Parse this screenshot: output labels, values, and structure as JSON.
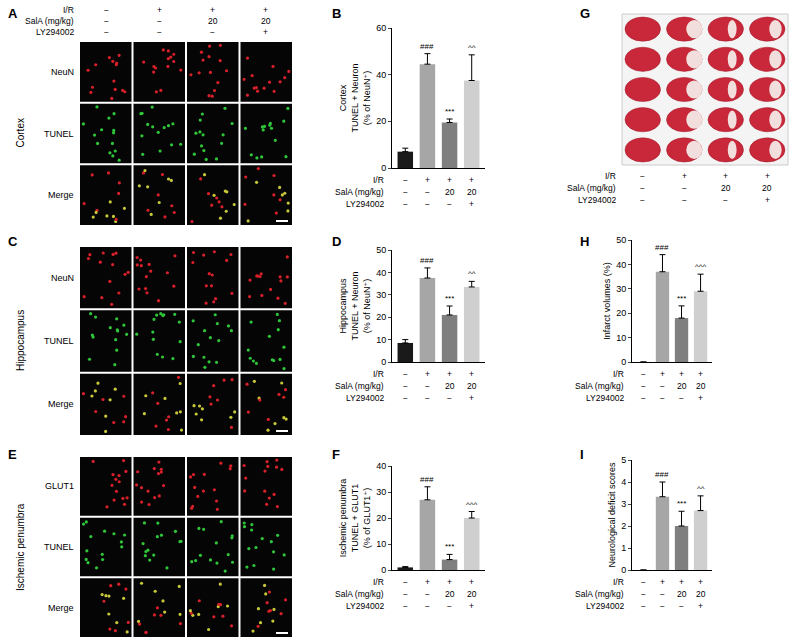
{
  "chart_data": [
    {
      "panel": "B",
      "type": "bar",
      "ylabel": [
        "Cortex",
        "TUNEL + Neuron",
        "(% of NeuN⁺)"
      ],
      "categories": [
        null,
        null,
        null,
        null
      ],
      "values": [
        7,
        44.5,
        19.5,
        37.5
      ],
      "errors": [
        1.5,
        4.5,
        1.5,
        11
      ],
      "significance": [
        null,
        "###",
        "***",
        "^^"
      ],
      "colors": [
        "#1a1a1a",
        "#a6a6a6",
        "#7f7f7f",
        "#cfcfcf"
      ],
      "ylim": [
        0,
        60
      ],
      "yticks": [
        0,
        20,
        40,
        60
      ],
      "grid": false
    },
    {
      "panel": "D",
      "type": "bar",
      "ylabel": [
        "Hippocampus",
        "TUNEL + Neuron",
        "(% of NeuN⁺)"
      ],
      "categories": [
        null,
        null,
        null,
        null
      ],
      "values": [
        8.5,
        37.5,
        21,
        33.5
      ],
      "errors": [
        1.5,
        4.5,
        4,
        2.5
      ],
      "significance": [
        null,
        "###",
        "***",
        "^^"
      ],
      "colors": [
        "#1a1a1a",
        "#a6a6a6",
        "#7f7f7f",
        "#cfcfcf"
      ],
      "ylim": [
        0,
        50
      ],
      "yticks": [
        0,
        10,
        20,
        30,
        40,
        50
      ],
      "grid": false
    },
    {
      "panel": "F",
      "type": "bar",
      "ylabel": [
        "Ischemic penumbra",
        "TUNEL + GLUT1",
        "(% of GLUT1⁺)"
      ],
      "categories": [
        null,
        null,
        null,
        null
      ],
      "values": [
        1,
        27,
        4,
        20
      ],
      "errors": [
        0.3,
        5,
        2,
        2.5
      ],
      "significance": [
        null,
        "###",
        "***",
        "^^^"
      ],
      "colors": [
        "#1a1a1a",
        "#a6a6a6",
        "#7f7f7f",
        "#cfcfcf"
      ],
      "ylim": [
        0,
        40
      ],
      "yticks": [
        0,
        10,
        20,
        30,
        40
      ],
      "grid": false
    },
    {
      "panel": "H",
      "type": "bar",
      "ylabel": [
        "Infarct volumes (%)"
      ],
      "categories": [
        null,
        null,
        null,
        null
      ],
      "values": [
        0,
        37,
        18,
        29
      ],
      "errors": [
        0,
        7,
        5,
        7
      ],
      "significance": [
        null,
        "###",
        "***",
        "^^^"
      ],
      "colors": [
        "#1a1a1a",
        "#a6a6a6",
        "#7f7f7f",
        "#cfcfcf"
      ],
      "ylim": [
        0,
        50
      ],
      "yticks": [
        0,
        10,
        20,
        30,
        40,
        50
      ],
      "grid": false
    },
    {
      "panel": "I",
      "type": "bar",
      "ylabel": [
        "Neurological deficit scores"
      ],
      "categories": [
        null,
        null,
        null,
        null
      ],
      "values": [
        0,
        3.33,
        2,
        2.7
      ],
      "errors": [
        0,
        0.67,
        0.67,
        0.67
      ],
      "significance": [
        null,
        "###",
        "***",
        "^^"
      ],
      "colors": [
        "#1a1a1a",
        "#a6a6a6",
        "#7f7f7f",
        "#cfcfcf"
      ],
      "ylim": [
        0,
        5
      ],
      "yticks": [
        0,
        1,
        2,
        3,
        4,
        5
      ],
      "grid": false
    }
  ],
  "image_panels": [
    {
      "panel": "A",
      "region": "Cortex",
      "rows": [
        "NeuN",
        "TUNEL",
        "Merge"
      ]
    },
    {
      "panel": "C",
      "region": "Hippocampus",
      "rows": [
        "NeuN",
        "TUNEL",
        "Merge"
      ]
    },
    {
      "panel": "E",
      "region": "Ischemic penumbra",
      "rows": [
        "GLUT1",
        "TUNEL",
        "Merge"
      ]
    },
    {
      "panel": "G"
    }
  ],
  "condition_table": {
    "panels": [
      "A",
      "B",
      "D",
      "F",
      "G",
      "H",
      "I"
    ],
    "rows": [
      {
        "label": "I/R",
        "values": [
          "−",
          "+",
          "+",
          "+"
        ]
      },
      {
        "label": "SalA (mg/kg)",
        "values": [
          "−",
          "−",
          "20",
          "20"
        ]
      },
      {
        "label": "LY294002",
        "values": [
          "−",
          "−",
          "−",
          "+"
        ]
      }
    ]
  }
}
